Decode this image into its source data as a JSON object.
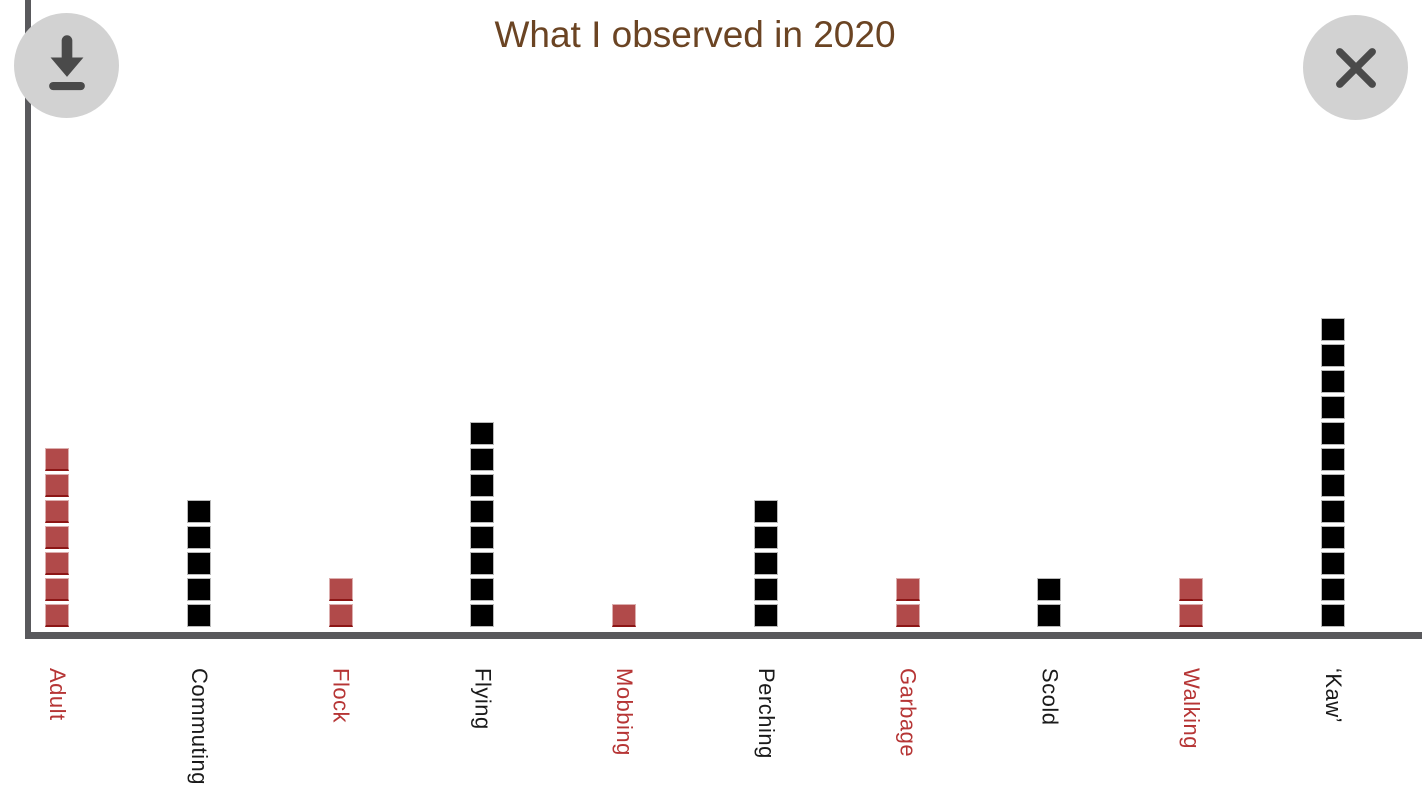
{
  "header": {
    "title": "What I observed in 2020"
  },
  "toolbar": {
    "download_button": {
      "icon": "download-icon",
      "aria_label": "Download"
    },
    "close_button": {
      "icon": "close-icon",
      "aria_label": "Close"
    }
  },
  "colors": {
    "title_text": "#6b4423",
    "axis": "#59595c",
    "button_background": "#d2d2d2",
    "button_glyph": "#4a4a4a",
    "unit_red": "#b14a4a",
    "unit_black": "#000000",
    "label_red": "#b63535",
    "label_black": "#1a1a1a"
  },
  "chart_data": {
    "type": "bar",
    "subtype": "waffle-unit-columns",
    "title": "What I observed in 2020",
    "xlabel": "",
    "ylabel": "",
    "unit_value": 1,
    "ylim": [
      0,
      12
    ],
    "grid": false,
    "legend": false,
    "categories": [
      "Adult",
      "Commuting",
      "Flock",
      "Flying",
      "Mobbing",
      "Perching",
      "Garbage",
      "Scold",
      "Walking",
      "‘Kaw’"
    ],
    "values": [
      7,
      5,
      2,
      8,
      1,
      5,
      2,
      2,
      2,
      12
    ],
    "points": [
      {
        "label": "Adult",
        "count": 7,
        "color": "red"
      },
      {
        "label": "Commuting",
        "count": 5,
        "color": "black"
      },
      {
        "label": "Flock",
        "count": 2,
        "color": "red"
      },
      {
        "label": "Flying",
        "count": 8,
        "color": "black"
      },
      {
        "label": "Mobbing",
        "count": 1,
        "color": "red"
      },
      {
        "label": "Perching",
        "count": 5,
        "color": "black"
      },
      {
        "label": "Garbage",
        "count": 2,
        "color": "red"
      },
      {
        "label": "Scold",
        "count": 2,
        "color": "black"
      },
      {
        "label": "Walking",
        "count": 2,
        "color": "red"
      },
      {
        "label": "‘Kaw’",
        "count": 12,
        "color": "black"
      }
    ]
  }
}
